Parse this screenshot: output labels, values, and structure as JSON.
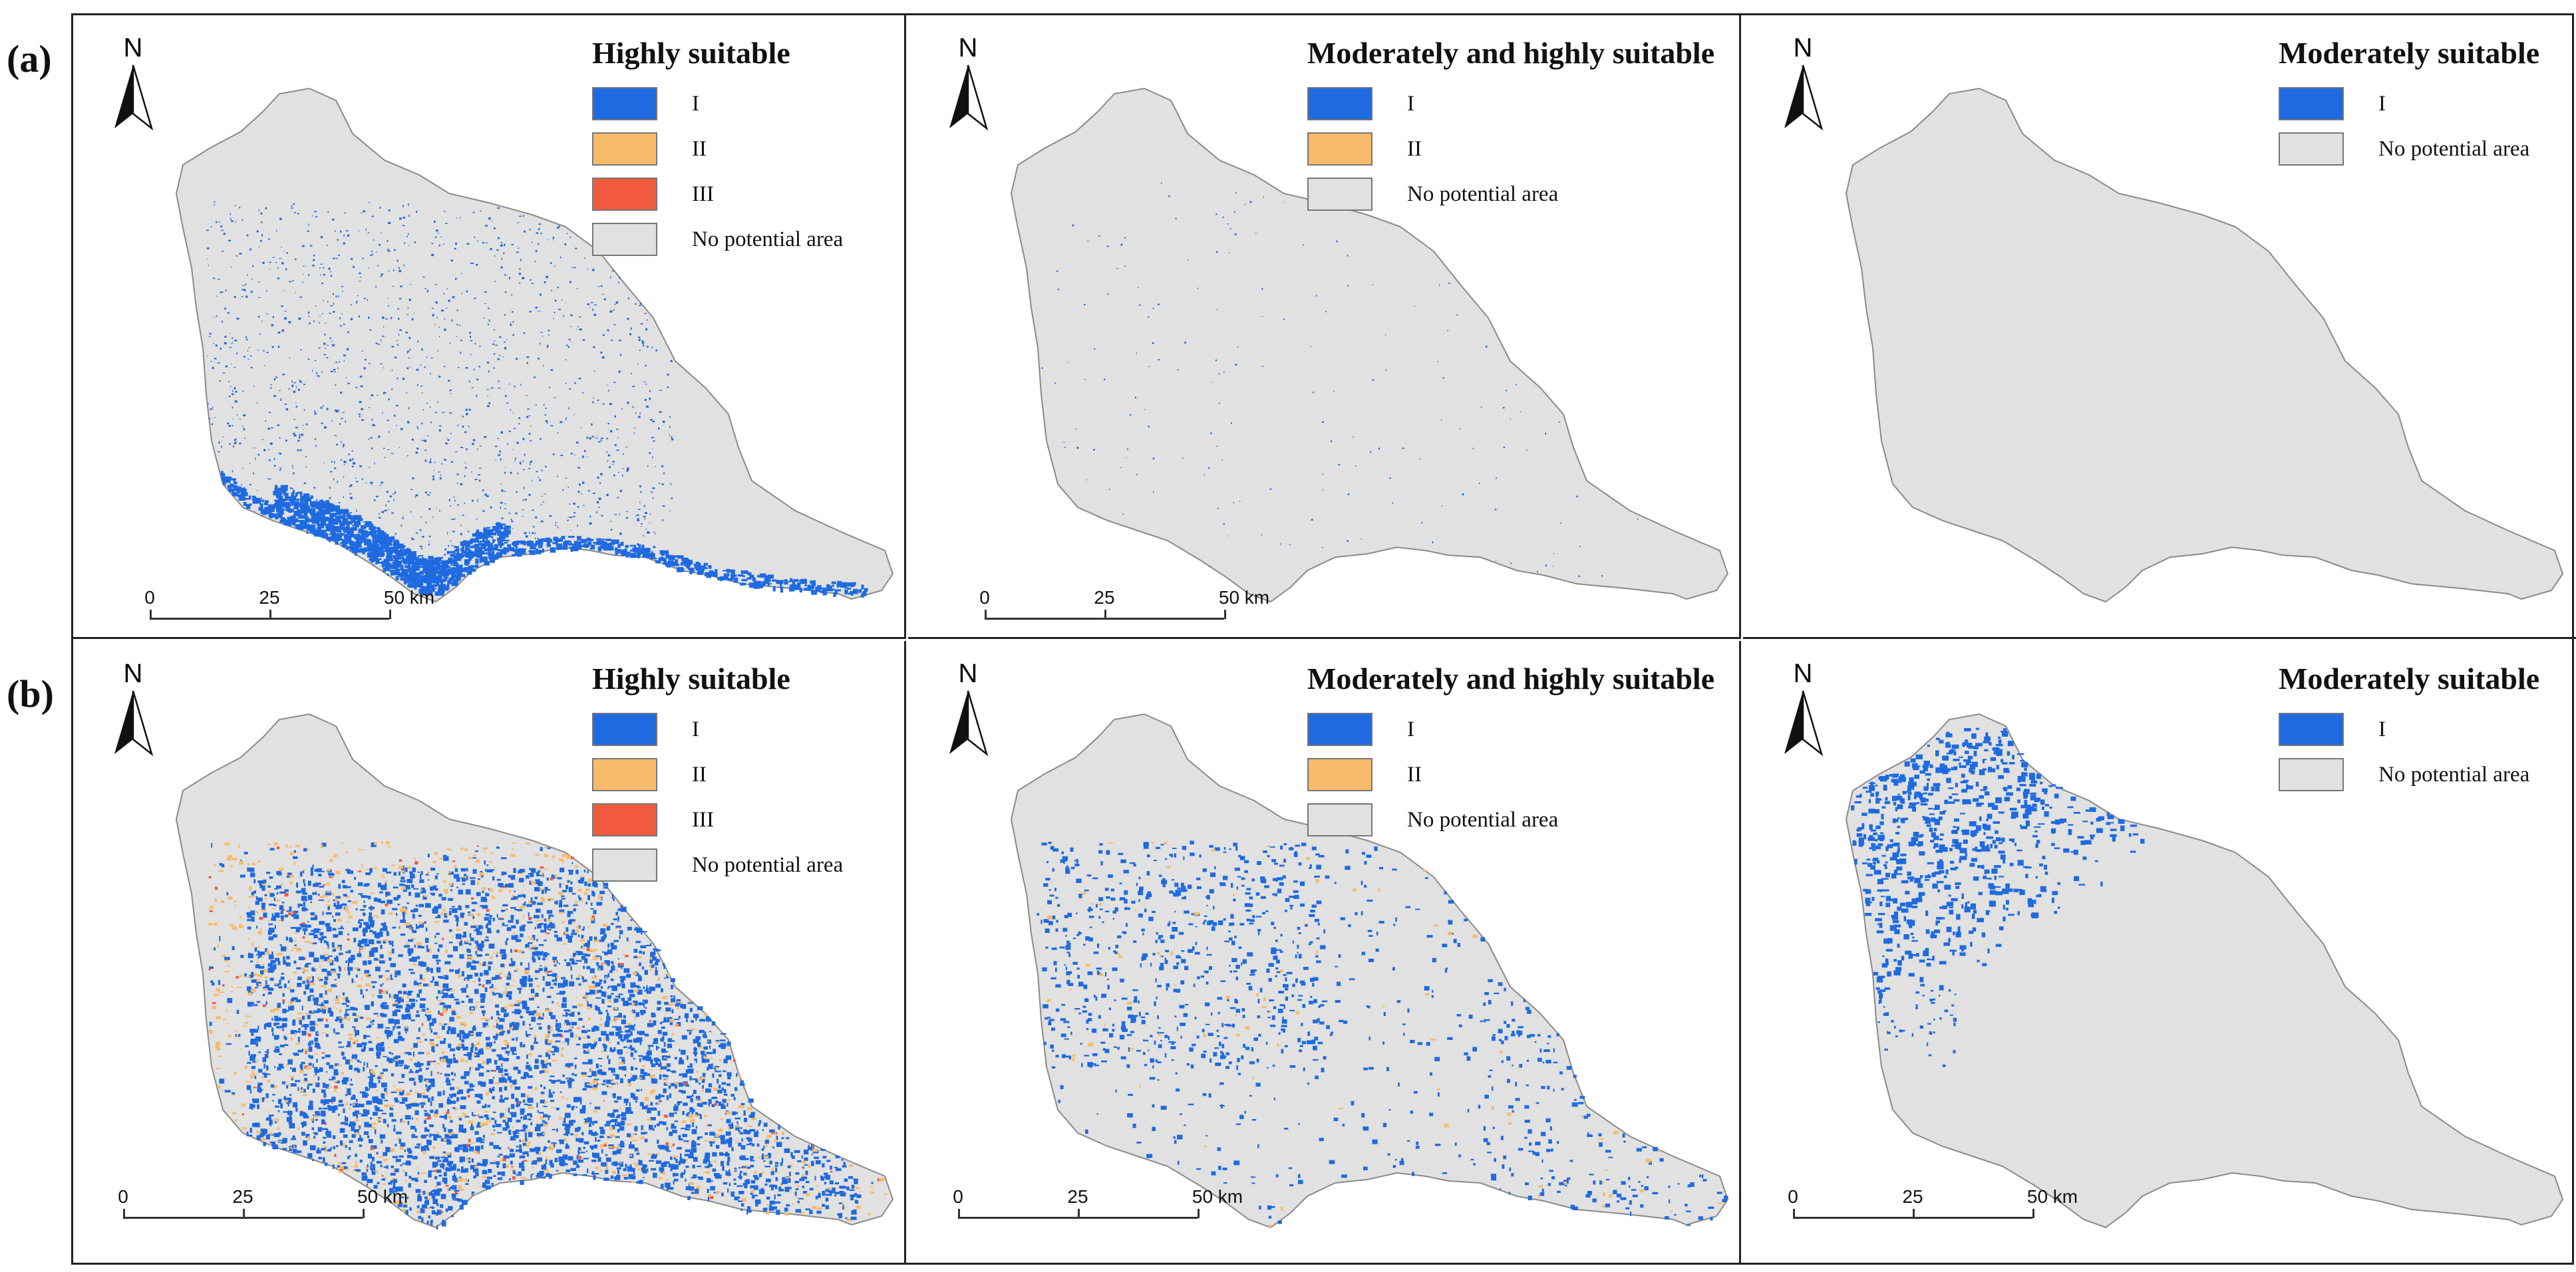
{
  "colors": {
    "class_I": "#1f6ae0",
    "class_II": "#f7bb6b",
    "class_III": "#f25a3d",
    "no_potential": "#e1e1e1",
    "basin_outline": "#8a8a8a"
  },
  "rows": [
    {
      "label": "(a)",
      "panels": [
        {
          "legend_title": "Highly suitable",
          "legend": [
            {
              "label": "I",
              "color_key": "class_I"
            },
            {
              "label": "II",
              "color_key": "class_II"
            },
            {
              "label": "III",
              "color_key": "class_III"
            },
            {
              "label": "No potential area",
              "color_key": "no_potential"
            }
          ],
          "north_label": "N",
          "scale_labels": [
            "0",
            "25",
            "50 km"
          ],
          "pattern": "south_edge"
        },
        {
          "legend_title": "Moderately and highly suitable",
          "legend": [
            {
              "label": "I",
              "color_key": "class_I"
            },
            {
              "label": "II",
              "color_key": "class_II"
            },
            {
              "label": "No potential area",
              "color_key": "no_potential"
            }
          ],
          "north_label": "N",
          "scale_labels": [
            "0",
            "25",
            "50 km"
          ],
          "pattern": "sparse"
        },
        {
          "legend_title": "Moderately suitable",
          "legend": [
            {
              "label": "I",
              "color_key": "class_I"
            },
            {
              "label": "No potential area",
              "color_key": "no_potential"
            }
          ],
          "north_label": "N",
          "scale_labels": [],
          "pattern": "none"
        }
      ]
    },
    {
      "label": "(b)",
      "panels": [
        {
          "legend_title": "Highly suitable",
          "legend": [
            {
              "label": "I",
              "color_key": "class_I"
            },
            {
              "label": "II",
              "color_key": "class_II"
            },
            {
              "label": "III",
              "color_key": "class_III"
            },
            {
              "label": "No potential area",
              "color_key": "no_potential"
            }
          ],
          "north_label": "N",
          "scale_labels": [
            "0",
            "25",
            "50 km"
          ],
          "pattern": "dense_mixed"
        },
        {
          "legend_title": "Moderately and highly suitable",
          "legend": [
            {
              "label": "I",
              "color_key": "class_I"
            },
            {
              "label": "II",
              "color_key": "class_II"
            },
            {
              "label": "No potential area",
              "color_key": "no_potential"
            }
          ],
          "north_label": "N",
          "scale_labels": [
            "0",
            "25",
            "50 km"
          ],
          "pattern": "medium"
        },
        {
          "legend_title": "Moderately suitable",
          "legend": [
            {
              "label": "I",
              "color_key": "class_I"
            },
            {
              "label": "No potential area",
              "color_key": "no_potential"
            }
          ],
          "north_label": "N",
          "scale_labels": [
            "0",
            "25",
            "50 km"
          ],
          "pattern": "northwest"
        }
      ]
    }
  ]
}
